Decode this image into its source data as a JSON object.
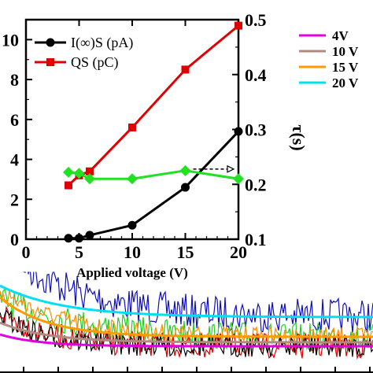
{
  "chart_data": [
    {
      "type": "line",
      "xlabel": "Applied voltage (V)",
      "ylabel_left": "",
      "ylabel_right": "τ(s)",
      "xlim": [
        0,
        20
      ],
      "ylim_left": [
        0,
        11
      ],
      "ylim_right": [
        0.1,
        0.5
      ],
      "x_ticks": [
        "0",
        "5",
        "10",
        "15",
        "20"
      ],
      "y_left_ticks": [
        "0",
        "2",
        "4",
        "6",
        "8",
        "10"
      ],
      "y_right_ticks": [
        "0.1",
        "0.2",
        "0.3",
        "0.4",
        "0.5"
      ],
      "legend": "top-left",
      "series": [
        {
          "name": "I(∞)S (pA)",
          "axis": "left",
          "color": "#000000",
          "marker": "circle",
          "points": [
            [
              4,
              0.05
            ],
            [
              5,
              0.05
            ],
            [
              6,
              0.2
            ],
            [
              10,
              0.7
            ],
            [
              15,
              2.6
            ],
            [
              20,
              5.4
            ]
          ]
        },
        {
          "name": "QS (pC)",
          "axis": "left",
          "color": "#e00000",
          "marker": "square",
          "points": [
            [
              4,
              2.7
            ],
            [
              5,
              3.2
            ],
            [
              6,
              3.4
            ],
            [
              10,
              5.6
            ],
            [
              15,
              8.5
            ],
            [
              20,
              10.7
            ]
          ]
        },
        {
          "name": "",
          "axis": "right",
          "color": "#22e022",
          "marker": "diamond",
          "points": [
            [
              4,
              0.222
            ],
            [
              5,
              0.22
            ],
            [
              6,
              0.21
            ],
            [
              10,
              0.21
            ],
            [
              15,
              0.225
            ],
            [
              20,
              0.21
            ]
          ]
        }
      ],
      "annotations": [
        "dashed arrow pointing from green series to right axis"
      ]
    },
    {
      "type": "line",
      "description_role": "background decay traces",
      "legend": "top-right",
      "series": [
        {
          "name": "4V",
          "color": "#e000e0"
        },
        {
          "name": "10 V",
          "color": "#b08a80"
        },
        {
          "name": "15 V",
          "color": "#ff9a00"
        },
        {
          "name": "20 V",
          "color": "#00e0f0"
        }
      ],
      "y_left_ticks_visible": [
        "0",
        "2",
        "4",
        "6",
        "8",
        "10"
      ],
      "noise_colors": [
        "#1010c0",
        "#20d020",
        "#ff8c00",
        "#e00000",
        "#000000"
      ]
    }
  ]
}
